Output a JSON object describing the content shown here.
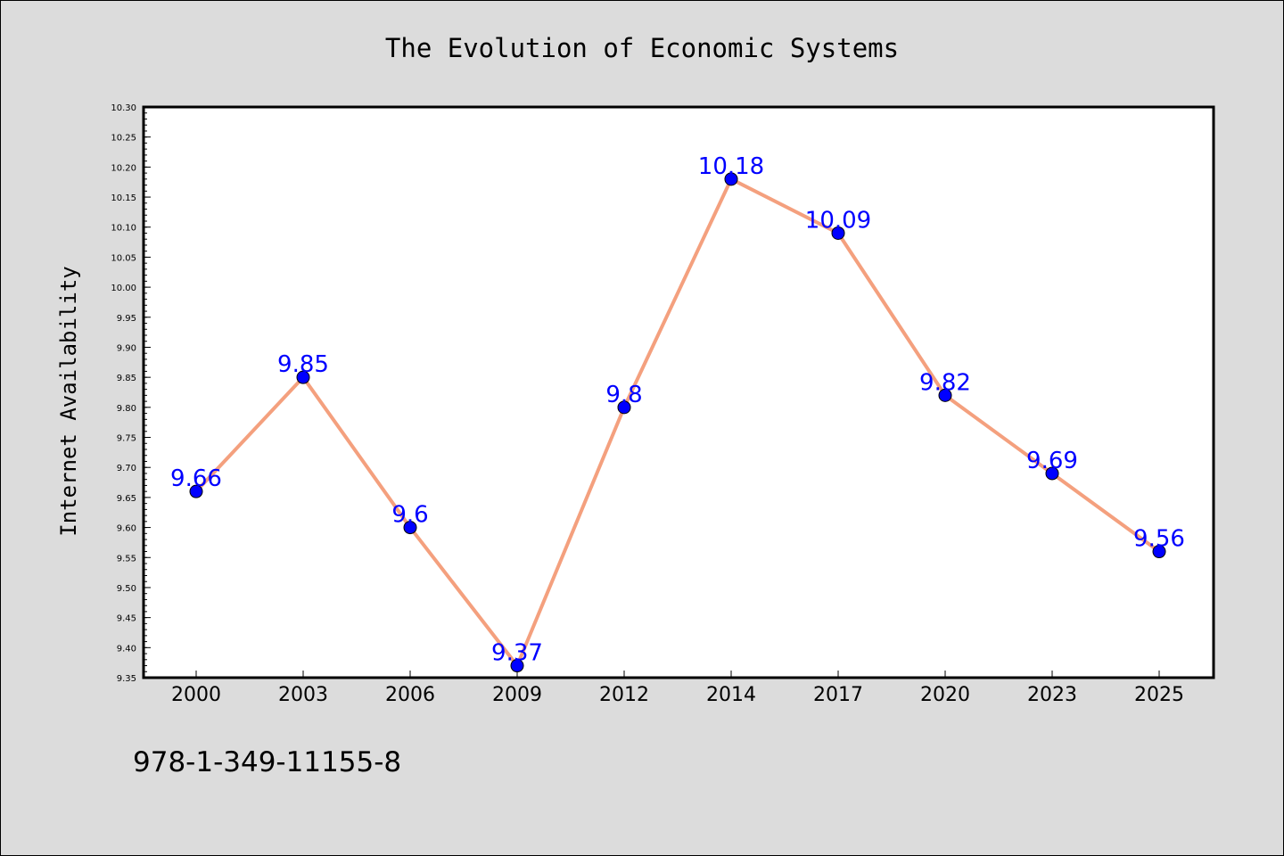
{
  "chart_data": {
    "type": "line",
    "title": "The Evolution of Economic Systems",
    "xlabel": "",
    "ylabel": "Internet Availability",
    "categories": [
      "2000",
      "2003",
      "2006",
      "2009",
      "2012",
      "2014",
      "2017",
      "2020",
      "2023",
      "2025"
    ],
    "series": [
      {
        "values": [
          9.66,
          9.85,
          9.6,
          9.37,
          9.8,
          10.18,
          10.09,
          9.82,
          9.69,
          9.56
        ],
        "data_labels": [
          "9.66",
          "9.85",
          "9.6",
          "9.37",
          "9.8",
          "10.18",
          "10.09",
          "9.82",
          "9.69",
          "9.56"
        ],
        "line_color": "#f4a07e",
        "marker_color": "#0000ff",
        "label_color": "#0000ff"
      }
    ],
    "ylim": [
      9.35,
      10.3
    ],
    "yticks": [
      "9.35",
      "9.40",
      "9.45",
      "9.50",
      "9.55",
      "9.60",
      "9.65",
      "9.70",
      "9.75",
      "9.80",
      "9.85",
      "9.90",
      "9.95",
      "10.00",
      "10.05",
      "10.10",
      "10.15",
      "10.20",
      "10.25",
      "10.30"
    ],
    "grid": false,
    "legend": "none",
    "colors": {
      "background": "#dcdcdc",
      "plot_background": "#ffffff",
      "axis": "#000000"
    }
  },
  "footer": {
    "isbn": "978-1-349-11155-8"
  }
}
